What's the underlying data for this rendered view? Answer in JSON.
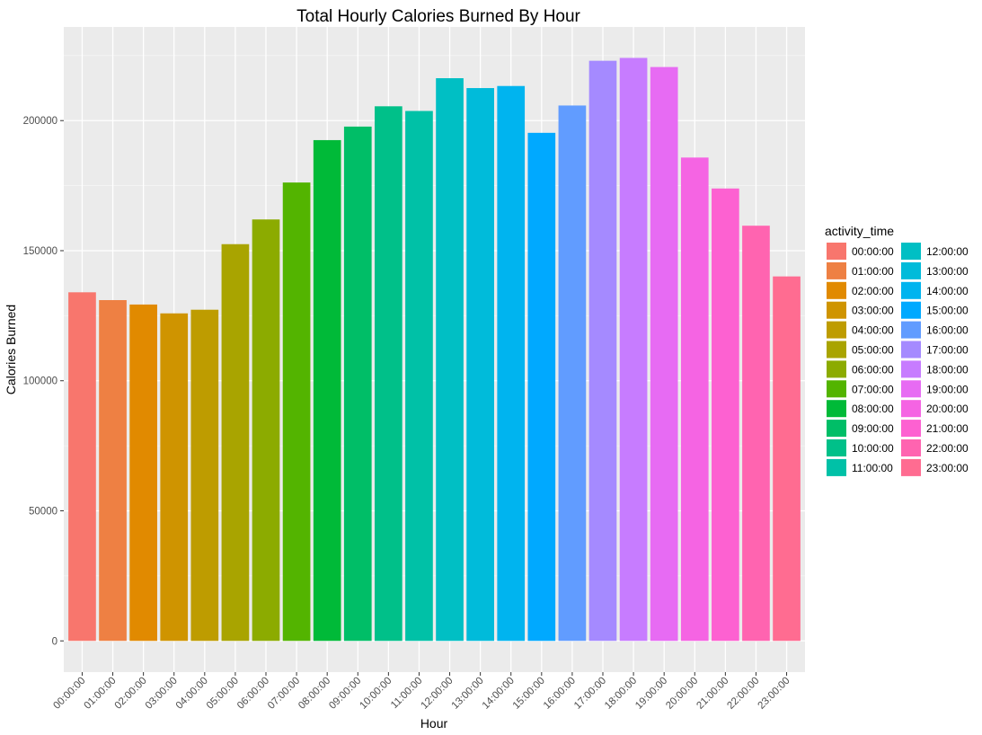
{
  "chart_data": {
    "type": "bar",
    "title": "Total Hourly Calories Burned By Hour",
    "xlabel": "Hour",
    "ylabel": "Calories Burned",
    "ylim": [
      -12000,
      236000
    ],
    "yticks": [
      0,
      50000,
      100000,
      150000,
      200000
    ],
    "ytick_labels": [
      "0",
      "50000",
      "100000",
      "150000",
      "200000"
    ],
    "grid": true,
    "legend_title": "activity_time",
    "legend_position": "right",
    "categories": [
      "00:00:00",
      "01:00:00",
      "02:00:00",
      "03:00:00",
      "04:00:00",
      "05:00:00",
      "06:00:00",
      "07:00:00",
      "08:00:00",
      "09:00:00",
      "10:00:00",
      "11:00:00",
      "12:00:00",
      "13:00:00",
      "14:00:00",
      "15:00:00",
      "16:00:00",
      "17:00:00",
      "18:00:00",
      "19:00:00",
      "20:00:00",
      "21:00:00",
      "22:00:00",
      "23:00:00"
    ],
    "values": [
      134000,
      131000,
      129300,
      125900,
      127300,
      152500,
      162000,
      176200,
      192500,
      197700,
      205500,
      203700,
      216300,
      212500,
      213300,
      195300,
      205800,
      223000,
      224100,
      220600,
      185800,
      173900,
      159600,
      140100
    ],
    "colors": [
      "#F8766D",
      "#EE8043",
      "#E18A00",
      "#CF9400",
      "#BE9C00",
      "#A9A400",
      "#8CAB00",
      "#53B400",
      "#00BA38",
      "#00BE67",
      "#00C089",
      "#00C1A7",
      "#00BFC4",
      "#00BBDA",
      "#00B4EF",
      "#00A9FF",
      "#619CFF",
      "#A58AFF",
      "#C77CFF",
      "#E76BF3",
      "#F564E3",
      "#FD61D1",
      "#FF64B0",
      "#FF6C91"
    ]
  }
}
